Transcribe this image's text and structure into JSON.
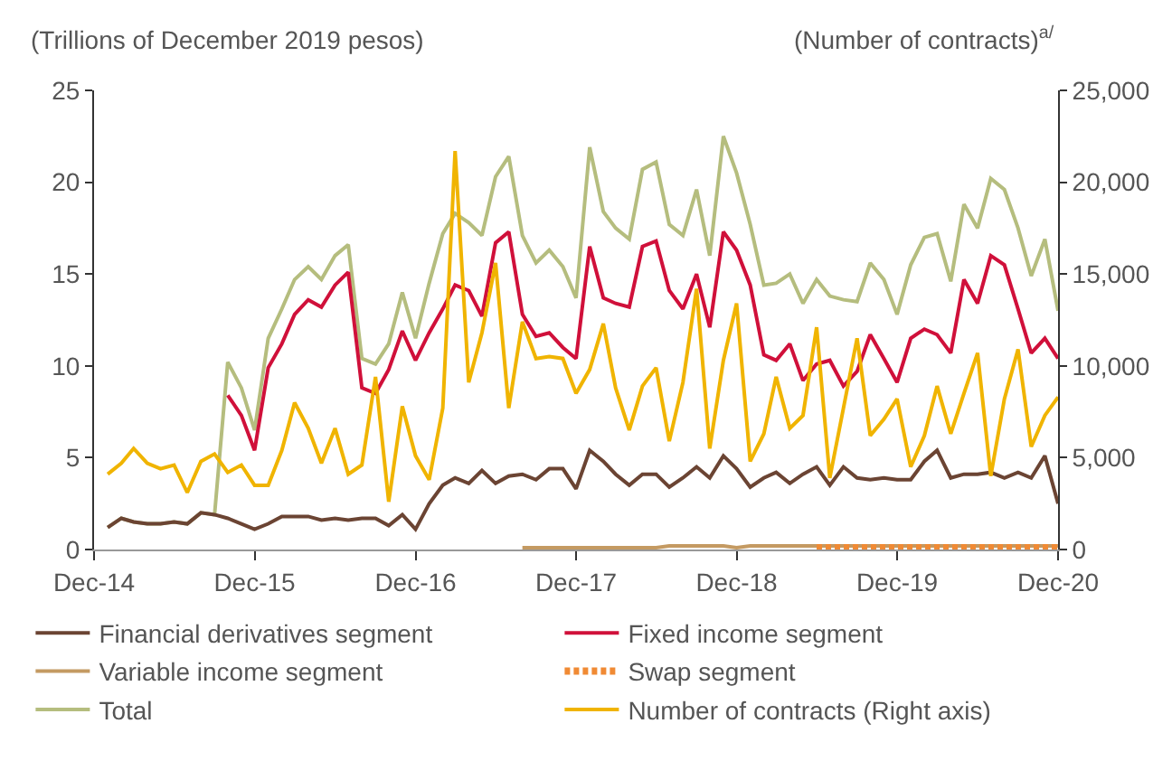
{
  "chart_data": {
    "type": "line",
    "ylabel": "(Trillions of December 2019 pesos)",
    "y2label": "(Number of contracts)$^{a/}$",
    "x": [
      "2015-01",
      "2015-02",
      "2015-03",
      "2015-04",
      "2015-05",
      "2015-06",
      "2015-07",
      "2015-08",
      "2015-09",
      "2015-10",
      "2015-11",
      "2015-12",
      "2016-01",
      "2016-02",
      "2016-03",
      "2016-04",
      "2016-05",
      "2016-06",
      "2016-07",
      "2016-08",
      "2016-09",
      "2016-10",
      "2016-11",
      "2016-12",
      "2017-01",
      "2017-02",
      "2017-03",
      "2017-04",
      "2017-05",
      "2017-06",
      "2017-07",
      "2017-08",
      "2017-09",
      "2017-10",
      "2017-11",
      "2017-12",
      "2018-01",
      "2018-02",
      "2018-03",
      "2018-04",
      "2018-05",
      "2018-06",
      "2018-07",
      "2018-08",
      "2018-09",
      "2018-10",
      "2018-11",
      "2018-12",
      "2019-01",
      "2019-02",
      "2019-03",
      "2019-04",
      "2019-05",
      "2019-06",
      "2019-07",
      "2019-08",
      "2019-09",
      "2019-10",
      "2019-11",
      "2019-12",
      "2020-01",
      "2020-02",
      "2020-03",
      "2020-04",
      "2020-05",
      "2020-06",
      "2020-07",
      "2020-08",
      "2020-09",
      "2020-10",
      "2020-11",
      "2020-12"
    ],
    "series": [
      {
        "name": "Total",
        "color": "#b5bd7e",
        "values": [
          1.2,
          1.7,
          1.5,
          1.4,
          1.4,
          1.5,
          1.4,
          2.0,
          1.9,
          10.2,
          8.8,
          6.5,
          11.5,
          13.1,
          14.7,
          15.4,
          14.7,
          16.0,
          16.6,
          10.4,
          10.1,
          11.2,
          14.0,
          11.5,
          14.5,
          17.2,
          18.3,
          17.8,
          17.1,
          20.3,
          21.4,
          17.1,
          15.6,
          16.3,
          15.4,
          13.7,
          21.9,
          18.4,
          17.5,
          16.9,
          20.7,
          21.1,
          17.7,
          17.1,
          19.6,
          16.0,
          22.5,
          20.5,
          17.7,
          14.4,
          14.5,
          15.0,
          13.4,
          14.7,
          13.8,
          13.6,
          13.5,
          15.6,
          14.7,
          12.8,
          15.5,
          17.0,
          17.2,
          14.6,
          18.8,
          17.5,
          20.2,
          19.6,
          17.5,
          14.9,
          16.9,
          13.0
        ]
      },
      {
        "name": "Financial derivatives segment",
        "color": "#6b4433",
        "values": [
          1.2,
          1.7,
          1.5,
          1.4,
          1.4,
          1.5,
          1.4,
          2.0,
          1.9,
          1.7,
          1.4,
          1.1,
          1.4,
          1.8,
          1.8,
          1.8,
          1.6,
          1.7,
          1.6,
          1.7,
          1.7,
          1.3,
          1.9,
          1.1,
          2.5,
          3.5,
          3.9,
          3.6,
          4.3,
          3.6,
          4.0,
          4.1,
          3.8,
          4.4,
          4.4,
          3.3,
          5.4,
          4.8,
          4.1,
          3.5,
          4.1,
          4.1,
          3.4,
          3.9,
          4.5,
          3.9,
          5.1,
          4.4,
          3.4,
          3.9,
          4.2,
          3.6,
          4.1,
          4.5,
          3.5,
          4.5,
          3.9,
          3.8,
          3.9,
          3.8,
          3.8,
          4.8,
          5.4,
          3.9,
          4.1,
          4.1,
          4.2,
          3.9,
          4.2,
          3.9,
          5.1,
          2.5
        ]
      },
      {
        "name": "Fixed income segment",
        "color": "#d0103a",
        "values": [
          null,
          null,
          null,
          null,
          null,
          null,
          null,
          null,
          null,
          8.4,
          7.3,
          5.4,
          9.9,
          11.2,
          12.8,
          13.6,
          13.2,
          14.4,
          15.1,
          8.8,
          8.5,
          9.8,
          11.9,
          10.3,
          11.8,
          13.1,
          14.4,
          14.1,
          12.7,
          16.7,
          17.3,
          12.8,
          11.6,
          11.8,
          11.0,
          10.4,
          16.5,
          13.7,
          13.4,
          13.2,
          16.5,
          16.8,
          14.1,
          13.1,
          15.0,
          12.1,
          17.3,
          16.3,
          14.4,
          10.6,
          10.3,
          11.2,
          9.2,
          10.1,
          10.3,
          8.9,
          9.7,
          11.7,
          10.4,
          9.1,
          11.5,
          12.0,
          11.7,
          10.7,
          14.7,
          13.4,
          16.0,
          15.5,
          13.1,
          10.7,
          11.5,
          10.4
        ]
      },
      {
        "name": "Variable income segment",
        "color": "#c49a62",
        "values": [
          null,
          null,
          null,
          null,
          null,
          null,
          null,
          null,
          null,
          null,
          null,
          null,
          null,
          null,
          null,
          null,
          null,
          null,
          null,
          null,
          null,
          null,
          null,
          null,
          null,
          null,
          null,
          null,
          null,
          null,
          null,
          0.1,
          0.1,
          0.1,
          0.1,
          0.1,
          0.1,
          0.1,
          0.1,
          0.1,
          0.1,
          0.1,
          0.2,
          0.2,
          0.2,
          0.2,
          0.2,
          0.1,
          0.2,
          0.2,
          0.2,
          0.2,
          0.2,
          0.2,
          0.2,
          0.2,
          0.2,
          0.2,
          0.2,
          0.2,
          0.2,
          0.2,
          0.2,
          0.2,
          0.2,
          0.2,
          0.2,
          0.2,
          0.2,
          0.2,
          0.2,
          0.2
        ]
      },
      {
        "name": "Swap segment",
        "color": "#f08a34",
        "line_style": "dashed",
        "values": [
          null,
          null,
          null,
          null,
          null,
          null,
          null,
          null,
          null,
          null,
          null,
          null,
          null,
          null,
          null,
          null,
          null,
          null,
          null,
          null,
          null,
          null,
          null,
          null,
          null,
          null,
          null,
          null,
          null,
          null,
          null,
          null,
          null,
          null,
          null,
          null,
          null,
          null,
          null,
          null,
          null,
          null,
          null,
          null,
          null,
          null,
          null,
          null,
          null,
          null,
          null,
          null,
          null,
          0.1,
          0.1,
          0.1,
          0.1,
          0.1,
          0.1,
          0.1,
          0.1,
          0.1,
          0.1,
          0.1,
          0.1,
          0.1,
          0.1,
          0.1,
          0.1,
          0.1,
          0.1,
          0.1
        ]
      },
      {
        "name": "Number of contracts (Right axis)",
        "color": "#f0b400",
        "axis": "y2",
        "values": [
          4100,
          4700,
          5500,
          4700,
          4400,
          4600,
          3100,
          4800,
          5200,
          4200,
          4600,
          3500,
          3500,
          5400,
          8000,
          6600,
          4700,
          6600,
          4100,
          4600,
          9400,
          2600,
          7800,
          5100,
          3800,
          7700,
          21700,
          9100,
          11800,
          15600,
          7700,
          12400,
          10400,
          10500,
          10400,
          8500,
          9800,
          12300,
          8800,
          6500,
          8900,
          9900,
          5900,
          9100,
          14200,
          5500,
          10300,
          13400,
          4800,
          6300,
          9400,
          6600,
          7300,
          12100,
          3900,
          7700,
          11500,
          6200,
          7100,
          8200,
          4500,
          6200,
          8900,
          6300,
          8500,
          10700,
          4000,
          8200,
          10900,
          5600,
          7300,
          8300
        ]
      }
    ],
    "xlim": [
      "2014-12",
      "2020-12"
    ],
    "xticks": [
      {
        "value": "2014-12",
        "label": "Dec-14"
      },
      {
        "value": "2015-12",
        "label": "Dec-15"
      },
      {
        "value": "2016-12",
        "label": "Dec-16"
      },
      {
        "value": "2017-12",
        "label": "Dec-17"
      },
      {
        "value": "2018-12",
        "label": "Dec-18"
      },
      {
        "value": "2019-12",
        "label": "Dec-19"
      },
      {
        "value": "2020-12",
        "label": "Dec-20"
      }
    ],
    "ylim": [
      0,
      25
    ],
    "yticks": [
      0,
      5,
      10,
      15,
      20,
      25
    ],
    "y2lim": [
      0,
      25000
    ],
    "y2ticks": [
      {
        "value": 0,
        "label": "0"
      },
      {
        "value": 5000,
        "label": "5,000"
      },
      {
        "value": 10000,
        "label": "10,000"
      },
      {
        "value": 15000,
        "label": "15,000"
      },
      {
        "value": 20000,
        "label": "20,000"
      },
      {
        "value": 25000,
        "label": "25,000"
      }
    ],
    "legend": "bottom",
    "marker": "none",
    "line_style": "solid"
  }
}
